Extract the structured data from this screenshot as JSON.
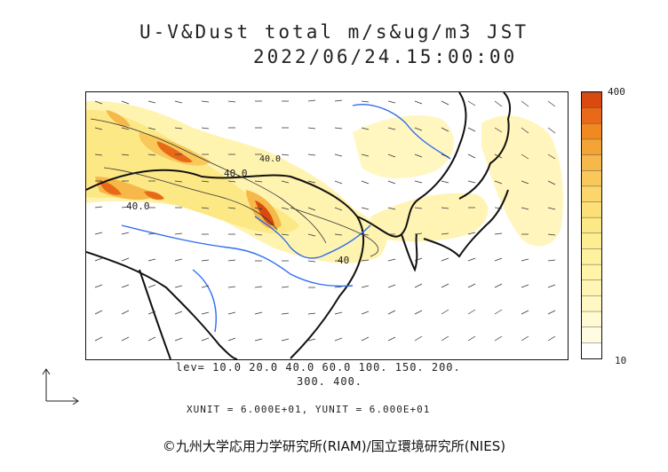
{
  "title": "U-V&Dust total m/s&ug/m3 JST",
  "datetime": "2022/06/24.15:00:00",
  "legend": {
    "max_label": "400",
    "min_label": "10",
    "colors": [
      "#d84a10",
      "#e86a18",
      "#f08a20",
      "#f4a434",
      "#f6b848",
      "#f8c85a",
      "#fad66c",
      "#fcdf78",
      "#fde886",
      "#feee92",
      "#fef29e",
      "#fff4a8",
      "#fff6b4",
      "#fff8c2",
      "#fffad2",
      "#fffce2",
      "#ffffff"
    ]
  },
  "contour_labels": [
    "40.0",
    "40.0",
    "40",
    "40.0"
  ],
  "lev_line1": "lev= 10.0 20.0 40.0 60.0 100. 150. 200.",
  "lev_line2": "300. 400.",
  "units_text": "XUNIT = 6.000E+01, YUNIT = 6.000E+01",
  "copyright": "©九州大学応用力学研究所(RIAM)/国立環境研究所(NIES)"
}
